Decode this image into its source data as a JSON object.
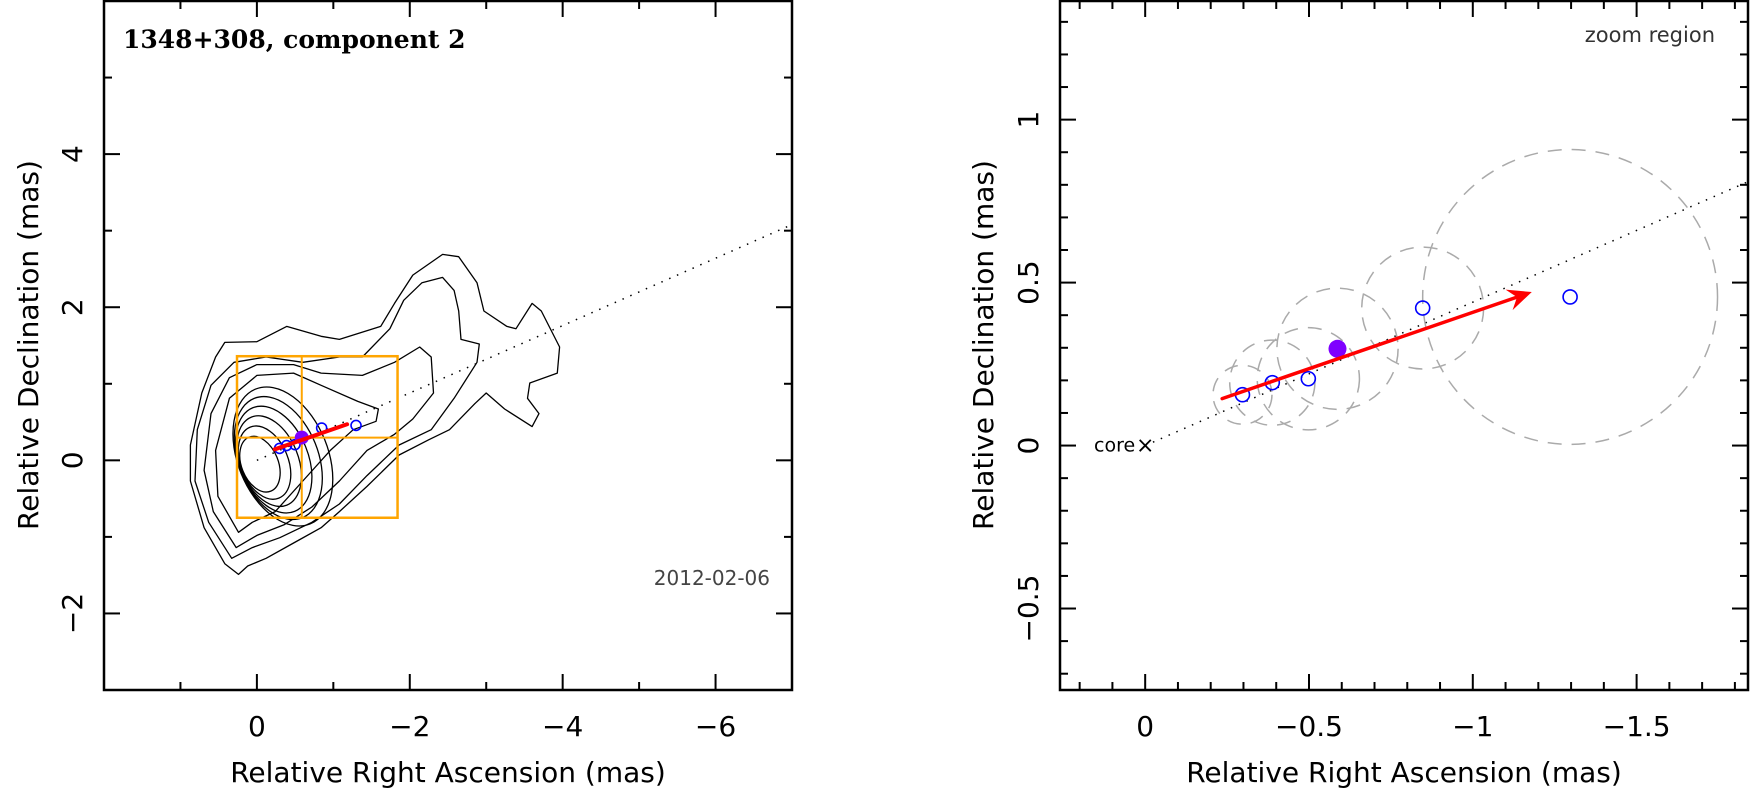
{
  "chart_data": [
    {
      "type": "contour",
      "title": "1348+308, component 2",
      "date": "2012-02-06",
      "xlabel": "Relative Right Ascension (mas)",
      "ylabel": "Relative Declination (mas)",
      "xlim": [
        2.0,
        -7.0
      ],
      "ylim": [
        -3.0,
        6.0
      ],
      "xticks": [
        0,
        -2,
        -4,
        -6
      ],
      "xtick_labels": [
        "0",
        "−2",
        "−4",
        "−6"
      ],
      "yticks": [
        -2,
        0,
        2,
        4
      ],
      "ytick_labels": [
        "−2",
        "0",
        "2",
        "4"
      ],
      "x_minor_step": 1,
      "y_minor_step": 1,
      "contours": [
        [
          [
            0.24,
            -1.49
          ],
          [
            0.42,
            -1.35
          ],
          [
            0.69,
            -0.88
          ],
          [
            0.87,
            -0.27
          ],
          [
            0.87,
            0.2
          ],
          [
            0.72,
            0.88
          ],
          [
            0.54,
            1.35
          ],
          [
            0.42,
            1.54
          ],
          [
            0,
            1.55
          ],
          [
            -0.39,
            1.75
          ],
          [
            -0.84,
            1.62
          ],
          [
            -1.08,
            1.58
          ],
          [
            -1.62,
            1.75
          ],
          [
            -1.8,
            2.05
          ],
          [
            -2.04,
            2.42
          ],
          [
            -2.43,
            2.69
          ],
          [
            -2.64,
            2.66
          ],
          [
            -2.88,
            2.32
          ],
          [
            -2.97,
            1.95
          ],
          [
            -3.27,
            1.75
          ],
          [
            -3.39,
            1.72
          ],
          [
            -3.6,
            2.05
          ],
          [
            -3.72,
            1.95
          ],
          [
            -3.96,
            1.48
          ],
          [
            -3.93,
            1.14
          ],
          [
            -3.57,
            1.01
          ],
          [
            -3.54,
            0.81
          ],
          [
            -3.69,
            0.61
          ],
          [
            -3.6,
            0.44
          ],
          [
            -3.24,
            0.67
          ],
          [
            -3.0,
            0.88
          ],
          [
            -2.85,
            0.74
          ],
          [
            -2.52,
            0.4
          ],
          [
            -2.25,
            0.27
          ],
          [
            -1.86,
            0.07
          ],
          [
            -1.44,
            -0.34
          ],
          [
            -1.08,
            -0.67
          ],
          [
            -0.84,
            -0.88
          ],
          [
            -0.48,
            -1.08
          ],
          [
            -0.12,
            -1.28
          ],
          [
            0.12,
            -1.38
          ]
        ],
        [
          [
            0.33,
            -1.28
          ],
          [
            0.63,
            -0.81
          ],
          [
            0.81,
            -0.27
          ],
          [
            0.78,
            0.4
          ],
          [
            0.6,
            0.98
          ],
          [
            0.3,
            1.28
          ],
          [
            -0.12,
            1.35
          ],
          [
            -0.6,
            1.28
          ],
          [
            -1.08,
            1.35
          ],
          [
            -1.38,
            1.35
          ],
          [
            -1.74,
            1.72
          ],
          [
            -1.92,
            2.09
          ],
          [
            -2.16,
            2.32
          ],
          [
            -2.43,
            2.39
          ],
          [
            -2.58,
            2.22
          ],
          [
            -2.64,
            1.95
          ],
          [
            -2.67,
            1.58
          ],
          [
            -2.91,
            1.52
          ],
          [
            -2.88,
            1.28
          ],
          [
            -2.58,
            0.81
          ],
          [
            -2.28,
            0.4
          ],
          [
            -1.86,
            0.2
          ],
          [
            -1.44,
            -0.2
          ],
          [
            -1.08,
            -0.57
          ],
          [
            -0.72,
            -0.81
          ],
          [
            -0.3,
            -1.01
          ],
          [
            0.06,
            -1.14
          ]
        ],
        [
          [
            0.27,
            -1.14
          ],
          [
            0.57,
            -0.67
          ],
          [
            0.69,
            -0.13
          ],
          [
            0.6,
            0.61
          ],
          [
            0.36,
            1.08
          ],
          [
            0,
            1.25
          ],
          [
            -0.48,
            1.25
          ],
          [
            -0.84,
            1.14
          ],
          [
            -1.38,
            1.11
          ],
          [
            -1.8,
            1.28
          ],
          [
            -2.13,
            1.48
          ],
          [
            -2.28,
            1.35
          ],
          [
            -2.31,
            0.88
          ],
          [
            -2.04,
            0.54
          ],
          [
            -1.8,
            0.34
          ],
          [
            -1.44,
            0.13
          ],
          [
            -1.08,
            -0.27
          ],
          [
            -0.72,
            -0.61
          ],
          [
            -0.36,
            -0.84
          ],
          [
            0,
            -0.98
          ]
        ],
        [
          [
            0.24,
            -0.94
          ],
          [
            0.51,
            -0.47
          ],
          [
            0.54,
            0.13
          ],
          [
            0.36,
            0.81
          ],
          [
            0,
            1.11
          ],
          [
            -0.48,
            1.14
          ],
          [
            -0.84,
            0.98
          ],
          [
            -1.32,
            0.77
          ],
          [
            -1.59,
            0.67
          ],
          [
            -1.56,
            0.51
          ],
          [
            -1.26,
            0.4
          ],
          [
            -0.96,
            0.13
          ],
          [
            -0.6,
            -0.27
          ],
          [
            -0.24,
            -0.67
          ],
          [
            0.06,
            -0.81
          ]
        ]
      ],
      "inner_contour_ellipses": [
        {
          "cx": -0.04,
          "cy": -0.05,
          "rx": 0.24,
          "ry": 0.38
        },
        {
          "cx": -0.1,
          "cy": -0.03,
          "rx": 0.31,
          "ry": 0.5
        },
        {
          "cx": -0.16,
          "cy": -0.01,
          "rx": 0.38,
          "ry": 0.62
        },
        {
          "cx": -0.22,
          "cy": 0.01,
          "rx": 0.45,
          "ry": 0.73
        },
        {
          "cx": -0.28,
          "cy": 0.03,
          "rx": 0.52,
          "ry": 0.84
        },
        {
          "cx": -0.34,
          "cy": 0.05,
          "rx": 0.59,
          "ry": 0.95
        }
      ],
      "zoom_box": {
        "x": [
          0.26,
          -1.84
        ],
        "y": [
          -0.75,
          1.36
        ],
        "cross_x": -0.587,
        "cross_y": 0.297
      }
    },
    {
      "type": "scatter",
      "title": "zoom region",
      "core_label": "core",
      "core_marker": "×",
      "xlabel": "Relative Right Ascension (mas)",
      "ylabel": "Relative Declination (mas)",
      "xlim": [
        0.26,
        -1.84
      ],
      "ylim": [
        -0.75,
        1.364
      ],
      "xticks": [
        0,
        -0.5,
        -1,
        -1.5
      ],
      "xtick_labels": [
        "0",
        "−0.5",
        "−1",
        "−1.5"
      ],
      "yticks": [
        -0.5,
        0,
        0.5,
        1
      ],
      "ytick_labels": [
        "−0.5",
        "0",
        "0.5",
        "1"
      ],
      "x_minor_step": 0.1,
      "y_minor_step": 0.1
    }
  ],
  "components": {
    "points": [
      {
        "x": -0.297,
        "y": 0.156,
        "err": 0.09,
        "filled": false
      },
      {
        "x": -0.388,
        "y": 0.193,
        "err": 0.13,
        "filled": false
      },
      {
        "x": -0.498,
        "y": 0.205,
        "err": 0.156,
        "filled": false
      },
      {
        "x": -0.587,
        "y": 0.297,
        "err": 0.185,
        "filled": true
      },
      {
        "x": -0.847,
        "y": 0.422,
        "err": 0.186,
        "filled": false
      },
      {
        "x": -1.297,
        "y": 0.456,
        "err": 0.45,
        "filled": false
      }
    ],
    "velocity_arrow": {
      "from": [
        -0.235,
        0.144
      ],
      "to": [
        -1.18,
        0.471
      ]
    },
    "jet_axis_slope": 0.44
  },
  "colors": {
    "contour": "#000000",
    "zoom_box": "#ffa500",
    "point": "#0000ff",
    "filled_point": "#7f00ff",
    "arrow": "#ff0000",
    "error_circle": "#aaaaaa",
    "date_text": "#444444"
  }
}
